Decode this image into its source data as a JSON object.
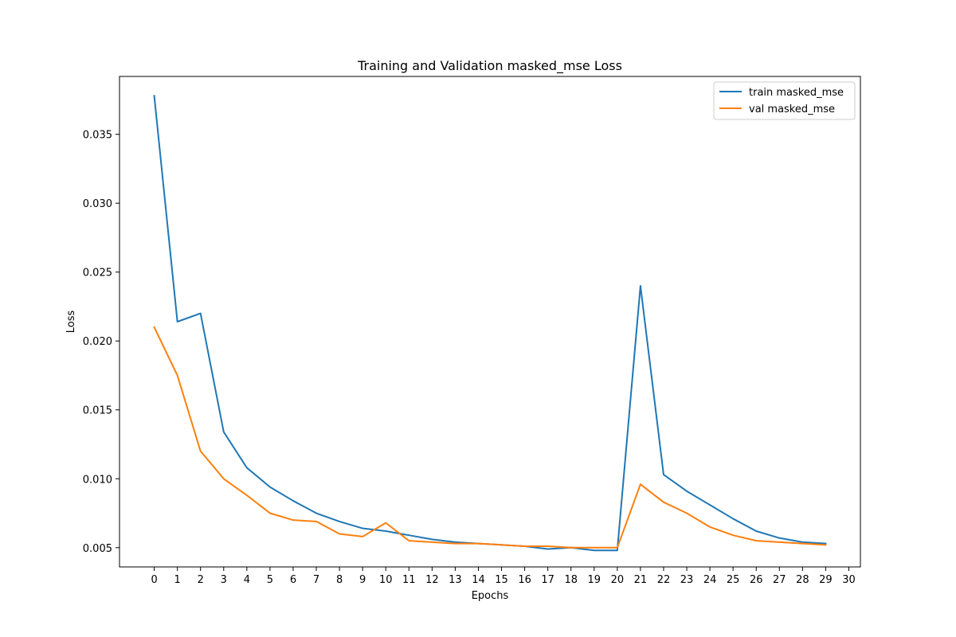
{
  "chart_data": {
    "type": "line",
    "title": "Training and Validation masked_mse Loss",
    "xlabel": "Epochs",
    "ylabel": "Loss",
    "xlim": [
      -1.5,
      30.5
    ],
    "ylim": [
      0.0036,
      0.0392
    ],
    "xticks": [
      0,
      1,
      2,
      3,
      4,
      5,
      6,
      7,
      8,
      9,
      10,
      11,
      12,
      13,
      14,
      15,
      16,
      17,
      18,
      19,
      20,
      21,
      22,
      23,
      24,
      25,
      26,
      27,
      28,
      29,
      30
    ],
    "xtick_labels": [
      "0",
      "1",
      "2",
      "3",
      "4",
      "5",
      "6",
      "7",
      "8",
      "9",
      "10",
      "11",
      "12",
      "13",
      "14",
      "15",
      "16",
      "17",
      "18",
      "19",
      "20",
      "21",
      "22",
      "23",
      "24",
      "25",
      "26",
      "27",
      "28",
      "29",
      "30"
    ],
    "yticks": [
      0.005,
      0.01,
      0.015,
      0.02,
      0.025,
      0.03,
      0.035
    ],
    "ytick_labels": [
      "0.005",
      "0.010",
      "0.015",
      "0.020",
      "0.025",
      "0.030",
      "0.035"
    ],
    "grid": false,
    "legend_position": "top-right",
    "x": [
      0,
      1,
      2,
      3,
      4,
      5,
      6,
      7,
      8,
      9,
      10,
      11,
      12,
      13,
      14,
      15,
      16,
      17,
      18,
      19,
      20,
      21,
      22,
      23,
      24,
      25,
      26,
      27,
      28,
      29
    ],
    "series": [
      {
        "name": "train masked_mse",
        "color": "#1f77b4",
        "values": [
          0.0378,
          0.0214,
          0.022,
          0.0134,
          0.0108,
          0.0094,
          0.0084,
          0.0075,
          0.0069,
          0.0064,
          0.0062,
          0.0059,
          0.0056,
          0.0054,
          0.0053,
          0.0052,
          0.0051,
          0.0049,
          0.005,
          0.0048,
          0.0048,
          0.024,
          0.0103,
          0.0091,
          0.0081,
          0.0071,
          0.0062,
          0.0057,
          0.0054,
          0.0053
        ]
      },
      {
        "name": "val masked_mse",
        "color": "#ff7f0e",
        "values": [
          0.021,
          0.0175,
          0.012,
          0.01,
          0.0088,
          0.0075,
          0.007,
          0.0069,
          0.006,
          0.0058,
          0.0068,
          0.0055,
          0.0054,
          0.0053,
          0.0053,
          0.0052,
          0.0051,
          0.0051,
          0.005,
          0.005,
          0.005,
          0.0096,
          0.0083,
          0.0075,
          0.0065,
          0.0059,
          0.0055,
          0.0054,
          0.0053,
          0.0052
        ]
      }
    ]
  }
}
